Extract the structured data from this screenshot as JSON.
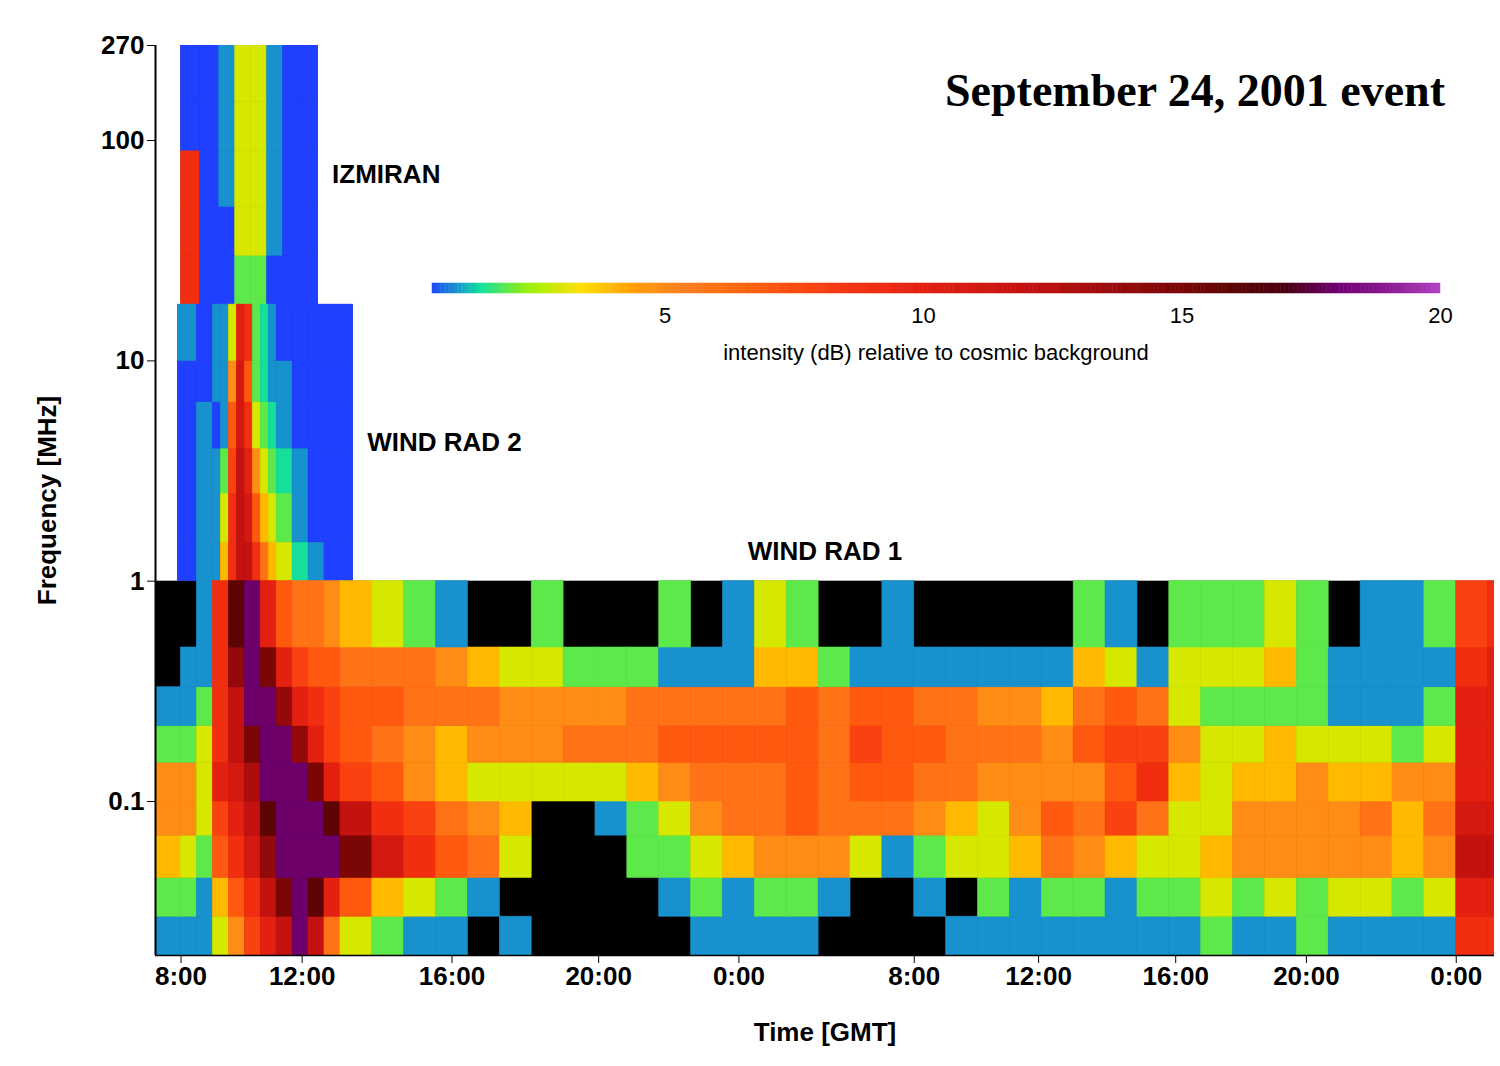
{
  "chart_data": {
    "type": "heatmap",
    "title": "September 24, 2001 event",
    "xlabel": "Time [GMT]",
    "ylabel": "Frequency [MHz]",
    "log": "y",
    "xlim": [
      7.2,
      49.2
    ],
    "xticks": [
      {
        "value": 8,
        "label": "8:00"
      },
      {
        "value": 11.8,
        "label": "12:00"
      },
      {
        "value": 16.5,
        "label": "16:00"
      },
      {
        "value": 21.1,
        "label": "20:00"
      },
      {
        "value": 25.5,
        "label": "0:00"
      },
      {
        "value": 31,
        "label": "8:00"
      },
      {
        "value": 34.9,
        "label": "12:00"
      },
      {
        "value": 39.2,
        "label": "16:00"
      },
      {
        "value": 43.3,
        "label": "20:00"
      },
      {
        "value": 48,
        "label": "0:00"
      }
    ],
    "ylim": [
      0.02,
      270
    ],
    "yticks": [
      0.1,
      1,
      10,
      100,
      270
    ],
    "colorbar": {
      "label": "intensity (dB) relative to cosmic background",
      "range": [
        0.5,
        20
      ],
      "ticks": [
        5,
        10,
        15,
        20
      ]
    },
    "panels": [
      {
        "name": "IZMIRAN",
        "x": [
          8,
          8.6,
          9.2,
          9.7,
          10.2,
          10.7,
          11.2,
          11.7,
          12.3
        ],
        "y": [
          18,
          30,
          50,
          90,
          150,
          270
        ],
        "cells": [
          [
            9,
            0.5,
            0.5,
            2,
            2,
            0.5,
            0.5,
            0.5
          ],
          [
            9,
            0.5,
            0.5,
            3,
            3,
            1,
            0.5,
            0.5
          ],
          [
            9,
            0.5,
            1,
            3,
            3,
            1,
            0.5,
            0.5
          ],
          [
            0.5,
            0.5,
            1,
            3,
            3,
            1,
            0.5,
            0.5
          ],
          [
            0.5,
            0.5,
            1,
            3,
            3,
            1,
            0.5,
            0.5
          ]
        ]
      },
      {
        "name": "WIND RAD 2",
        "x": [
          7.9,
          8.5,
          9,
          9.25,
          9.5,
          9.75,
          10,
          10.25,
          10.5,
          10.75,
          11,
          11.5,
          12,
          12.5,
          13.4
        ],
        "y": [
          1,
          1.5,
          2.5,
          4,
          6.5,
          10,
          18
        ],
        "cells": [
          [
            0.5,
            1,
            1,
            4,
            9,
            12,
            12,
            9,
            6,
            4,
            3,
            1.5,
            1,
            0.5
          ],
          [
            0.5,
            1,
            1,
            3,
            9,
            12,
            11,
            7,
            4,
            3,
            2,
            1,
            0.5,
            0.5
          ],
          [
            0.5,
            1,
            1,
            2,
            8,
            12,
            10,
            5,
            3,
            2,
            1.5,
            1,
            0.5,
            0.5
          ],
          [
            0.5,
            1,
            0.5,
            1,
            7,
            11,
            9,
            3,
            2,
            1.5,
            1,
            0.5,
            0.5,
            0.5
          ],
          [
            0.5,
            0.5,
            1,
            1,
            5,
            11,
            7,
            2,
            1.5,
            1,
            1,
            0.5,
            0.5,
            0.5
          ],
          [
            1,
            0.5,
            1,
            1,
            3,
            10,
            9,
            2,
            1.5,
            1,
            0.5,
            0.5,
            0.5,
            0.5
          ]
        ]
      },
      {
        "name": "WIND RAD 1",
        "x": [
          7.2,
          8,
          8.5,
          9,
          9.5,
          10,
          10.5,
          11,
          11.5,
          12,
          12.5,
          13,
          14,
          15,
          16,
          17,
          18,
          19,
          20,
          21,
          22,
          23,
          24,
          25,
          26,
          27,
          28,
          29,
          30,
          31,
          32,
          33,
          34,
          35,
          36,
          37,
          38,
          39,
          40,
          41,
          42,
          43,
          44,
          45,
          46,
          47,
          48,
          49,
          49.2
        ],
        "y": [
          0.02,
          0.03,
          0.045,
          0.07,
          0.1,
          0.15,
          0.22,
          0.33,
          0.5,
          1
        ],
        "cells": [
          [
            1,
            1,
            1,
            3,
            5,
            8,
            10,
            12,
            18,
            12,
            6,
            3,
            2,
            1,
            1,
            null,
            1,
            null,
            null,
            null,
            null,
            null,
            1,
            1,
            1,
            1,
            null,
            null,
            null,
            null,
            1,
            1,
            1,
            1,
            1,
            1,
            1,
            1,
            2,
            1,
            1,
            2,
            1,
            1,
            1,
            1,
            9,
            9
          ],
          [
            2,
            2,
            1,
            4,
            7,
            9,
            12,
            15,
            18,
            16,
            10,
            7,
            4,
            3,
            2,
            1,
            null,
            null,
            null,
            null,
            null,
            1,
            2,
            1,
            2,
            2,
            1,
            null,
            null,
            1,
            null,
            2,
            1,
            2,
            2,
            1,
            2,
            2,
            3,
            2,
            3,
            2,
            3,
            3,
            2,
            3,
            10,
            10
          ],
          [
            4,
            3,
            2,
            7,
            9,
            11,
            14,
            18,
            18,
            18,
            18,
            15,
            11,
            9,
            7,
            6,
            3,
            null,
            null,
            null,
            2,
            2,
            3,
            4,
            5,
            5,
            5,
            3,
            1,
            2,
            3,
            3,
            4,
            6,
            5,
            4,
            3,
            3,
            4,
            5,
            5,
            5,
            5,
            5,
            4,
            5,
            12,
            12
          ],
          [
            5,
            5,
            3,
            8,
            10,
            12,
            16,
            18,
            18,
            18,
            16,
            12,
            9,
            8,
            6,
            5,
            4,
            null,
            null,
            1,
            2,
            3,
            5,
            6,
            6,
            7,
            6,
            6,
            6,
            5,
            4,
            3,
            5,
            7,
            6,
            8,
            6,
            3,
            3,
            5,
            5,
            5,
            5,
            6,
            4,
            6,
            11,
            11
          ],
          [
            5,
            5,
            3,
            10,
            11,
            13,
            18,
            18,
            18,
            15,
            10,
            8,
            7,
            5,
            4,
            3,
            3,
            3,
            3,
            3,
            4,
            5,
            6,
            6,
            6,
            7,
            6,
            7,
            7,
            6,
            6,
            5,
            5,
            5,
            5,
            7,
            9,
            4,
            3,
            4,
            4,
            5,
            4,
            4,
            5,
            5,
            10,
            10
          ],
          [
            2,
            2,
            3,
            9,
            12,
            15,
            18,
            18,
            14,
            10,
            8,
            7,
            6,
            5,
            4,
            5,
            5,
            5,
            6,
            6,
            6,
            7,
            7,
            7,
            7,
            7,
            6,
            8,
            7,
            7,
            6,
            6,
            6,
            5,
            7,
            8,
            8,
            5,
            3,
            3,
            4,
            3,
            3,
            3,
            2,
            3,
            10,
            10
          ],
          [
            1,
            1,
            2,
            9,
            12,
            18,
            18,
            14,
            10,
            9,
            8,
            7,
            7,
            6,
            6,
            6,
            5,
            5,
            5,
            5,
            6,
            6,
            6,
            6,
            6,
            7,
            6,
            7,
            7,
            6,
            6,
            5,
            5,
            4,
            6,
            7,
            6,
            3,
            2,
            2,
            2,
            2,
            1,
            1,
            1,
            2,
            10,
            10
          ],
          [
            null,
            1,
            1,
            9,
            14,
            18,
            15,
            10,
            8,
            7,
            7,
            6,
            6,
            6,
            5,
            4,
            3,
            3,
            2,
            2,
            2,
            1,
            1,
            1,
            4,
            4,
            2,
            1,
            1,
            1,
            1,
            1,
            1,
            1,
            4,
            3,
            1,
            3,
            3,
            3,
            4,
            2,
            1,
            1,
            1,
            1,
            9,
            10
          ],
          [
            null,
            null,
            1,
            9,
            16,
            18,
            10,
            7,
            6,
            6,
            5,
            4,
            3,
            2,
            1,
            null,
            null,
            2,
            null,
            null,
            null,
            2,
            null,
            1,
            3,
            2,
            null,
            null,
            1,
            null,
            null,
            null,
            null,
            null,
            2,
            1,
            null,
            2,
            2,
            2,
            3,
            2,
            null,
            1,
            1,
            2,
            8,
            9
          ]
        ]
      }
    ]
  }
}
